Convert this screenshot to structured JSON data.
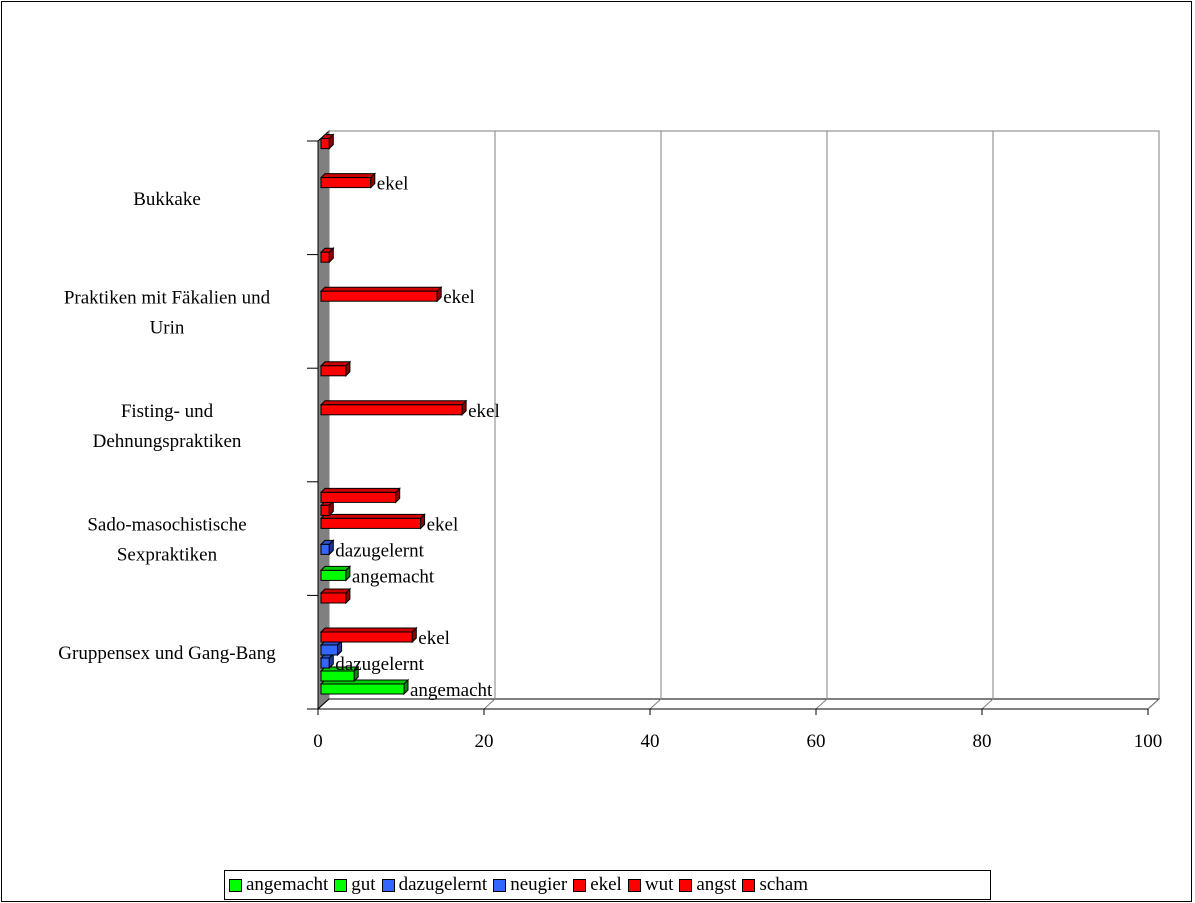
{
  "chart_data": {
    "type": "bar",
    "orientation": "horizontal",
    "categories": [
      "Gruppensex und Gang-Bang",
      "Sado-masochistische Sexpraktiken",
      "Fisting- und Dehnungspraktiken",
      "Praktiken mit Fäkalien und Urin",
      "Bukkake"
    ],
    "category_lines": [
      [
        "Gruppensex und Gang-Bang"
      ],
      [
        "Sado-masochistische",
        "Sexpraktiken"
      ],
      [
        "Fisting- und",
        "Dehnungspraktiken"
      ],
      [
        "Praktiken mit Fäkalien und",
        "Urin"
      ],
      [
        "Bukkake"
      ]
    ],
    "series": [
      {
        "name": "angemacht",
        "color": "#00ff00",
        "values": [
          10,
          3,
          0,
          0,
          0
        ]
      },
      {
        "name": "gut",
        "color": "#00ff00",
        "values": [
          4,
          0,
          0,
          0,
          0
        ]
      },
      {
        "name": "dazugelernt",
        "color": "#3366ff",
        "values": [
          1,
          1,
          0,
          0,
          0
        ]
      },
      {
        "name": "neugier",
        "color": "#3366ff",
        "values": [
          2,
          0,
          0,
          0,
          0
        ]
      },
      {
        "name": "ekel",
        "color": "#ff0000",
        "values": [
          11,
          12,
          17,
          14,
          6
        ]
      },
      {
        "name": "wut",
        "color": "#ff0000",
        "values": [
          0,
          1,
          0,
          0,
          0
        ]
      },
      {
        "name": "angst",
        "color": "#ff0000",
        "values": [
          0,
          9,
          0,
          0,
          0
        ]
      },
      {
        "name": "scham",
        "color": "#ff0000",
        "values": [
          3,
          0,
          3,
          1,
          1
        ]
      }
    ],
    "data_labels": [
      {
        "category": "Gruppensex und Gang-Bang",
        "series": "angemacht",
        "text": "angemacht"
      },
      {
        "category": "Gruppensex und Gang-Bang",
        "series": "dazugelernt",
        "text": "dazugelernt"
      },
      {
        "category": "Gruppensex und Gang-Bang",
        "series": "ekel",
        "text": "ekel"
      },
      {
        "category": "Sado-masochistische Sexpraktiken",
        "series": "angemacht",
        "text": "angemacht"
      },
      {
        "category": "Sado-masochistische Sexpraktiken",
        "series": "dazugelernt",
        "text": "dazugelernt"
      },
      {
        "category": "Sado-masochistische Sexpraktiken",
        "series": "ekel",
        "text": "ekel"
      },
      {
        "category": "Fisting- und Dehnungspraktiken",
        "series": "ekel",
        "text": "ekel"
      },
      {
        "category": "Praktiken mit Fäkalien und Urin",
        "series": "ekel",
        "text": "ekel"
      },
      {
        "category": "Bukkake",
        "series": "ekel",
        "text": "ekel"
      }
    ],
    "xlim": [
      0,
      100
    ],
    "x_ticks": [
      0,
      20,
      40,
      60,
      80,
      100
    ],
    "grid": "vertical",
    "legend_position": "bottom",
    "title": "",
    "xlabel": "",
    "ylabel": ""
  }
}
